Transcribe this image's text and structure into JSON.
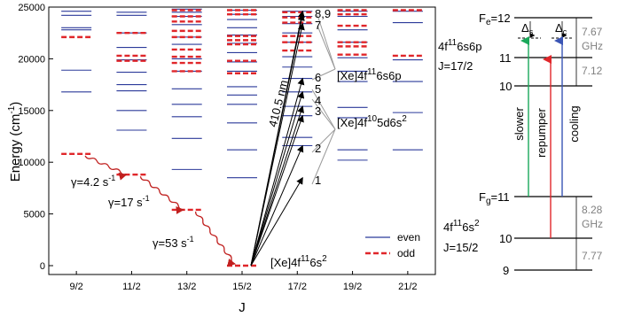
{
  "plot": {
    "ylabel": "Energy (cm",
    "ylabel_sup": "-1",
    "ylabel_close": ")",
    "xlabel": "J",
    "y_ticks": [
      "0",
      "5000",
      "10000",
      "15000",
      "20000",
      "25000"
    ],
    "x_ticks": [
      "9/2",
      "11/2",
      "13/2",
      "15/2",
      "17/2",
      "19/2",
      "21/2"
    ]
  },
  "chart_data": {
    "type": "level-diagram",
    "ylabel": "Energy (cm-1)",
    "xlabel": "J",
    "ylim": [
      0,
      25000
    ],
    "even_levels": {
      "9/2": [
        16800,
        18900,
        22800,
        23000,
        24200,
        24600
      ],
      "11/2": [
        13100,
        15000,
        16900,
        17500,
        18700,
        19900,
        21100,
        22500,
        24200,
        24500
      ],
      "13/2": [
        9300,
        12300,
        14400,
        15600,
        17100,
        18800,
        20000,
        21400,
        22100,
        23300,
        24100,
        24500,
        24800
      ],
      "15/2": [
        8500,
        11200,
        13800,
        15600,
        16500,
        17300,
        18800,
        19700,
        20600,
        21500,
        22300,
        23000,
        23800,
        24300,
        24700
      ],
      "17/2": [
        11600,
        12400,
        14500,
        15400,
        16800,
        18100,
        19200,
        20200,
        21600,
        22500,
        23400,
        24100,
        24600
      ],
      "19/2": [
        10200,
        11200,
        14300,
        15300,
        17800,
        18800,
        20100,
        21600,
        22800,
        24100,
        24600
      ],
      "21/2": [
        11200,
        14800,
        17800,
        19900,
        23500,
        24600
      ]
    },
    "odd_levels": {
      "9/2": [
        10800,
        22100
      ],
      "11/2": [
        8800,
        19800,
        20300,
        22500
      ],
      "13/2": [
        5400,
        18800,
        19600,
        20200,
        20900,
        22100,
        22700,
        23600,
        24100,
        24700
      ],
      "15/2": [
        0,
        18600,
        19800,
        21400,
        21800,
        22200,
        24300,
        24700
      ],
      "17/2": [
        20800,
        21600,
        22200,
        23500,
        24000,
        24500
      ],
      "19/2": [
        20400,
        21200,
        21600,
        23200,
        24300,
        24700
      ],
      "21/2": [
        20300,
        24700
      ]
    },
    "transitions": [
      {
        "label": "1",
        "energy": 8500
      },
      {
        "label": "2",
        "energy": 11600
      },
      {
        "label": "3",
        "energy": 14500
      },
      {
        "label": "4",
        "energy": 15400
      },
      {
        "label": "5",
        "energy": 16800
      },
      {
        "label": "6",
        "energy": 18100
      },
      {
        "label": "7",
        "energy": 23400
      },
      {
        "label": "8",
        "energy": 24300
      },
      {
        "label": "9",
        "energy": 24600
      }
    ],
    "decay_cascade": [
      {
        "J": "9/2",
        "energy": 10800,
        "rate": "γ=4.2 s"
      },
      {
        "J": "11/2",
        "energy": 8800,
        "rate": "γ=17 s"
      },
      {
        "J": "13/2",
        "energy": 5400,
        "rate": "γ=53 s"
      },
      {
        "J": "15/2",
        "energy": 0
      }
    ]
  },
  "annotations": {
    "ground_state_prefix": "[Xe]4f",
    "ground_state_sup": "11",
    "ground_state_suffix": "6s",
    "ground_state_sup2": "2",
    "config_6s6p_prefix": "[Xe]4f",
    "config_6s6p_sup": "11",
    "config_6s6p_suffix": "6s6p",
    "config_5d_prefix": "[Xe]4f",
    "config_5d_sup": "10",
    "config_5d_suffix": "5d6s",
    "config_5d_sup2": "2",
    "wavelength": "410.5 nm",
    "gamma1": "γ=4.2 s",
    "gamma2": "γ=17 s",
    "gamma3": "γ=53 s",
    "gamma_sup": "-1",
    "labels": [
      "1",
      "2",
      "3",
      "4",
      "5",
      "6",
      "7",
      "8",
      "9"
    ],
    "label_89_comma": ","
  },
  "legend": {
    "even": "even",
    "odd": "odd",
    "even_color": "#2b3a9a",
    "odd_color": "#e0262a"
  },
  "hyperfine": {
    "excited_config_a": "4f",
    "excited_config_sup": "11",
    "excited_config_b": "6s6p",
    "excited_j": "J=17/2",
    "ground_config_a": "4f",
    "ground_config_sup": "11",
    "ground_config_b": "6s",
    "ground_config_sup2": "2",
    "ground_j": "J=15/2",
    "fe_label": "F",
    "fe_sub": "e",
    "fe_value": "=12",
    "fg_label": "F",
    "fg_sub": "g",
    "fg_value": "=11",
    "level_11": "11",
    "level_10": "10",
    "level_g10": "10",
    "level_9": "9",
    "split_767": "7.67",
    "split_767_unit": "GHz",
    "split_712": "7.12",
    "split_828": "8.28",
    "split_828_unit": "GHz",
    "split_777": "7.77",
    "delta_s": "Δ",
    "delta_s_sub": "s",
    "delta_c": "Δ",
    "delta_c_sub": "c",
    "beam_slower": "slower",
    "beam_repumper": "repumper",
    "beam_cooling": "cooling",
    "slower_color": "#1aa85a",
    "repumper_color": "#e0262a",
    "cooling_color": "#3a55b5"
  }
}
